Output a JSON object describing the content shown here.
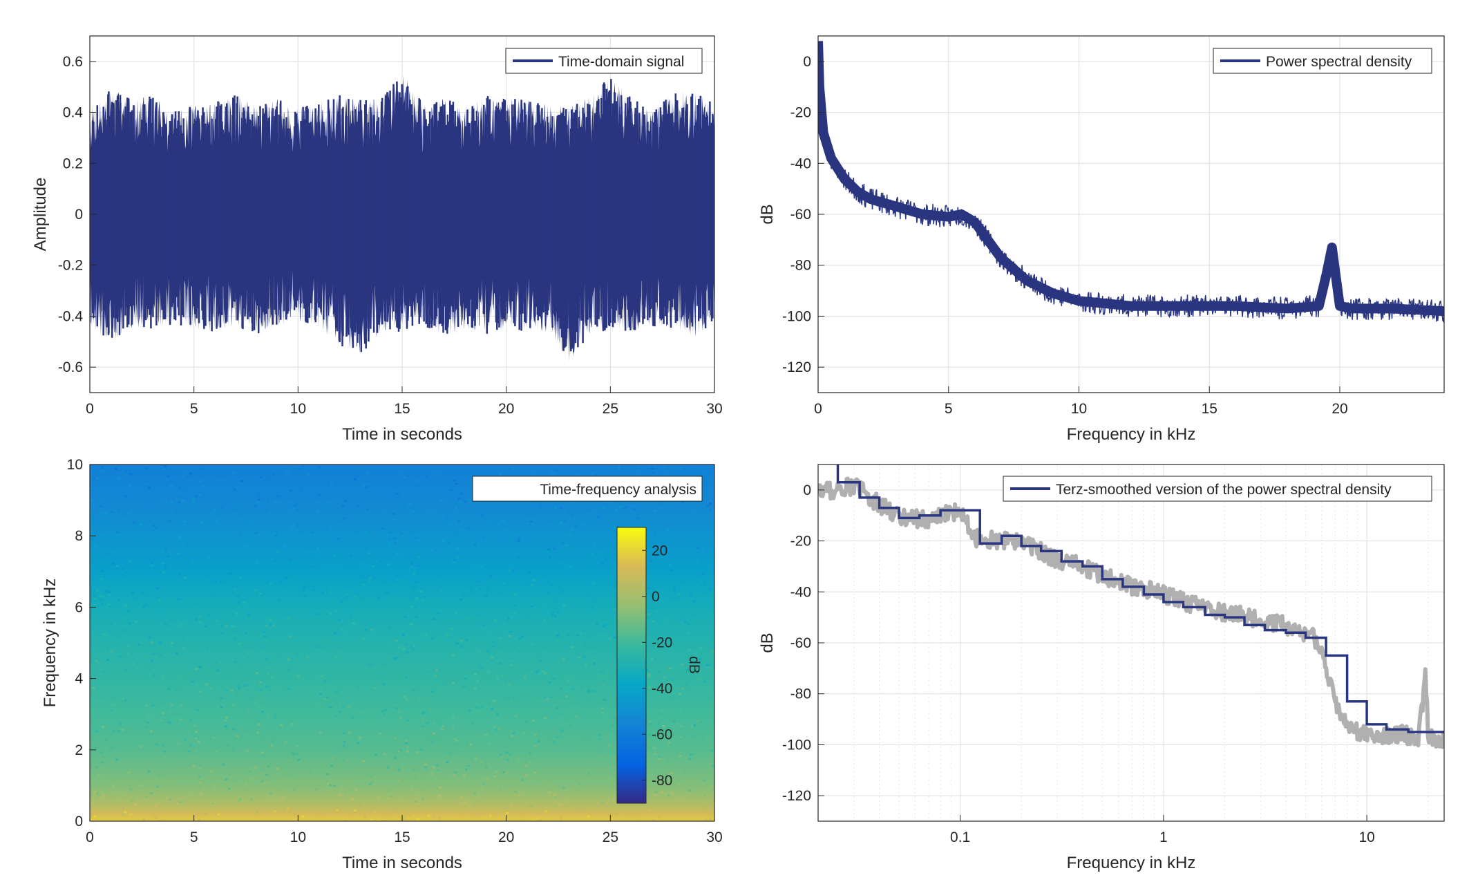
{
  "chart_data": [
    {
      "type": "line",
      "title": "",
      "xlabel": "Time in seconds",
      "ylabel": "Amplitude",
      "xlim": [
        0,
        30
      ],
      "ylim": [
        -0.7,
        0.7
      ],
      "xticks": [
        0,
        5,
        10,
        15,
        20,
        25,
        30
      ],
      "yticks": [
        -0.6,
        -0.4,
        -0.2,
        0,
        0.2,
        0.4,
        0.6
      ],
      "ytick_labels": [
        "-0.6",
        "-0.4",
        "-0.2",
        "0",
        "0.2",
        "0.4",
        "0.6"
      ],
      "grid": true,
      "legend_position": "top-right",
      "series": [
        {
          "name": "Time-domain signal",
          "color": "#2a3580",
          "envelope_x": [
            0,
            1,
            2,
            3,
            4,
            5,
            6,
            7,
            8,
            9,
            10,
            11,
            12,
            13,
            14,
            15,
            16,
            17,
            18,
            19,
            20,
            21,
            22,
            23,
            24,
            25,
            26,
            27,
            28,
            29,
            30
          ],
          "envelope_upper": [
            0.42,
            0.5,
            0.45,
            0.47,
            0.41,
            0.43,
            0.44,
            0.47,
            0.43,
            0.46,
            0.42,
            0.44,
            0.47,
            0.45,
            0.46,
            0.56,
            0.44,
            0.46,
            0.42,
            0.47,
            0.46,
            0.45,
            0.44,
            0.42,
            0.47,
            0.54,
            0.46,
            0.41,
            0.47,
            0.5,
            0.43
          ],
          "envelope_lower": [
            -0.44,
            -0.5,
            -0.45,
            -0.46,
            -0.43,
            -0.45,
            -0.47,
            -0.44,
            -0.47,
            -0.44,
            -0.42,
            -0.45,
            -0.52,
            -0.55,
            -0.47,
            -0.46,
            -0.44,
            -0.48,
            -0.46,
            -0.47,
            -0.45,
            -0.46,
            -0.47,
            -0.58,
            -0.48,
            -0.45,
            -0.47,
            -0.44,
            -0.45,
            -0.49,
            -0.42
          ]
        }
      ]
    },
    {
      "type": "line",
      "title": "",
      "xlabel": "Frequency in kHz",
      "ylabel": "dB",
      "xlim": [
        0,
        24
      ],
      "ylim": [
        -130,
        10
      ],
      "xticks": [
        0,
        5,
        10,
        15,
        20
      ],
      "yticks": [
        -120,
        -100,
        -80,
        -60,
        -40,
        -20,
        0
      ],
      "grid": true,
      "legend_position": "top-right",
      "series": [
        {
          "name": "Power spectral density",
          "color": "#2a3580",
          "x": [
            0,
            0.05,
            0.2,
            0.5,
            1,
            1.5,
            2,
            3,
            4,
            5,
            5.5,
            6,
            6.5,
            7,
            8,
            9,
            10,
            11,
            12,
            14,
            16,
            18,
            19.2,
            19.5,
            19.7,
            20,
            20.5,
            22,
            24
          ],
          "y": [
            8,
            -10,
            -28,
            -38,
            -46,
            -51,
            -54,
            -57,
            -60,
            -61,
            -60,
            -63,
            -70,
            -77,
            -86,
            -91,
            -94,
            -95,
            -96,
            -96,
            -96,
            -97,
            -96,
            -83,
            -73,
            -96,
            -97,
            -97,
            -98
          ]
        }
      ]
    },
    {
      "type": "heatmap",
      "title": "",
      "xlabel": "Time in seconds",
      "ylabel": "Frequency in kHz",
      "xlim": [
        0,
        30
      ],
      "ylim": [
        0,
        10
      ],
      "xticks": [
        0,
        5,
        10,
        15,
        20,
        25,
        30
      ],
      "yticks": [
        0,
        2,
        4,
        6,
        8,
        10
      ],
      "legend_position": "top-right",
      "legend_label": "Time-frequency analysis",
      "colorbar": {
        "label": "dB",
        "limits": [
          -90,
          30
        ],
        "ticks": [
          -80,
          -60,
          -40,
          -20,
          0,
          20
        ]
      },
      "frequency_profile_khz": [
        0,
        0.2,
        0.4,
        0.6,
        1,
        2,
        3,
        4,
        5,
        6,
        7,
        8,
        9,
        10
      ],
      "level_profile_db": [
        18,
        12,
        5,
        0,
        -8,
        -16,
        -20,
        -24,
        -28,
        -33,
        -42,
        -48,
        -54,
        -58
      ]
    },
    {
      "type": "line",
      "title": "",
      "xlabel": "Frequency in kHz",
      "ylabel": "dB",
      "xscale": "log",
      "xlim": [
        0.02,
        24
      ],
      "ylim": [
        -130,
        10
      ],
      "xticks": [
        0.1,
        1,
        10
      ],
      "yticks": [
        -120,
        -100,
        -80,
        -60,
        -40,
        -20,
        0
      ],
      "grid": true,
      "legend_position": "top-right",
      "series": [
        {
          "name": "",
          "color": "#b0b0b0",
          "x": [
            0.02,
            0.025,
            0.03,
            0.04,
            0.05,
            0.07,
            0.09,
            0.1,
            0.12,
            0.15,
            0.2,
            0.25,
            0.3,
            0.4,
            0.5,
            0.7,
            1,
            1.5,
            2,
            3,
            4,
            5,
            5.5,
            6,
            7,
            8,
            10,
            15,
            18,
            19.5,
            20,
            24
          ],
          "y": [
            0,
            0,
            2,
            -6,
            -10,
            -12,
            -9,
            -8,
            -19,
            -20,
            -20,
            -24,
            -28,
            -30,
            -34,
            -38,
            -41,
            -46,
            -48,
            -51,
            -53,
            -57,
            -58,
            -64,
            -84,
            -93,
            -96,
            -96,
            -97,
            -72,
            -97,
            -98
          ]
        },
        {
          "name": "Terz-smoothed version of the power spectral density",
          "color": "#2a3580",
          "steps": [
            [
              0.02,
              0.025,
              18
            ],
            [
              0.025,
              0.032,
              3
            ],
            [
              0.032,
              0.04,
              -3
            ],
            [
              0.04,
              0.05,
              -7
            ],
            [
              0.05,
              0.063,
              -11
            ],
            [
              0.063,
              0.08,
              -10
            ],
            [
              0.08,
              0.1,
              -8
            ],
            [
              0.1,
              0.125,
              -8
            ],
            [
              0.125,
              0.16,
              -21
            ],
            [
              0.16,
              0.2,
              -18
            ],
            [
              0.2,
              0.25,
              -22
            ],
            [
              0.25,
              0.315,
              -24
            ],
            [
              0.315,
              0.4,
              -28
            ],
            [
              0.4,
              0.5,
              -30
            ],
            [
              0.5,
              0.63,
              -35
            ],
            [
              0.63,
              0.8,
              -38
            ],
            [
              0.8,
              1,
              -41
            ],
            [
              1,
              1.25,
              -44
            ],
            [
              1.25,
              1.6,
              -46
            ],
            [
              1.6,
              2,
              -49
            ],
            [
              2,
              2.5,
              -50
            ],
            [
              2.5,
              3.15,
              -53
            ],
            [
              3.15,
              4,
              -55
            ],
            [
              4,
              5,
              -56
            ],
            [
              5,
              6.3,
              -58
            ],
            [
              6.3,
              8,
              -65
            ],
            [
              8,
              10,
              -83
            ],
            [
              10,
              12.5,
              -92
            ],
            [
              12.5,
              16,
              -94
            ],
            [
              16,
              20,
              -95
            ],
            [
              20,
              24,
              -95
            ]
          ]
        }
      ]
    }
  ]
}
